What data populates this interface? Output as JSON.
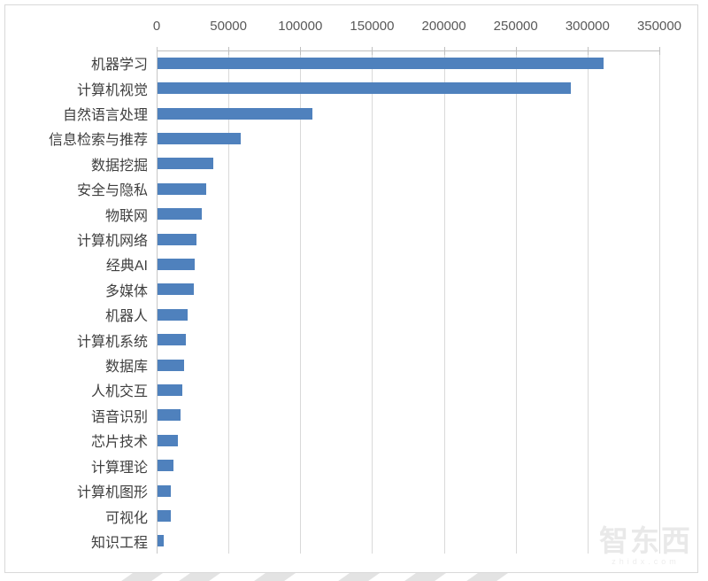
{
  "watermark": {
    "logo_text": "智东西",
    "site_text": "zhidx.com"
  },
  "chart_data": {
    "type": "bar",
    "orientation": "horizontal",
    "title": "",
    "xlabel": "",
    "ylabel": "",
    "xlim": [
      0,
      350000
    ],
    "grid": true,
    "x_tick_labels": [
      "0",
      "50000",
      "100000",
      "150000",
      "200000",
      "250000",
      "300000",
      "350000"
    ],
    "x_tick_values": [
      0,
      50000,
      100000,
      150000,
      200000,
      250000,
      300000,
      350000
    ],
    "categories": [
      "机器学习",
      "计算机视觉",
      "自然语言处理",
      "信息检索与推荐",
      "数据挖掘",
      "安全与隐私",
      "物联网",
      "计算机网络",
      "经典AI",
      "多媒体",
      "机器人",
      "计算机系统",
      "数据库",
      "人机交互",
      "语音识别",
      "芯片技术",
      "计算理论",
      "计算机图形",
      "可视化",
      "知识工程"
    ],
    "values": [
      311000,
      288000,
      108000,
      58000,
      39000,
      34000,
      31000,
      27000,
      26000,
      25500,
      21000,
      20000,
      18500,
      17500,
      16000,
      14500,
      11000,
      9000,
      9000,
      4500
    ],
    "bar_color": "#4f81bd",
    "gridline_color": "#d9d9d9",
    "axis_line_color": "#bfbfbf",
    "axis_text_color": "#595959",
    "category_text_color": "#3f3f3f"
  }
}
